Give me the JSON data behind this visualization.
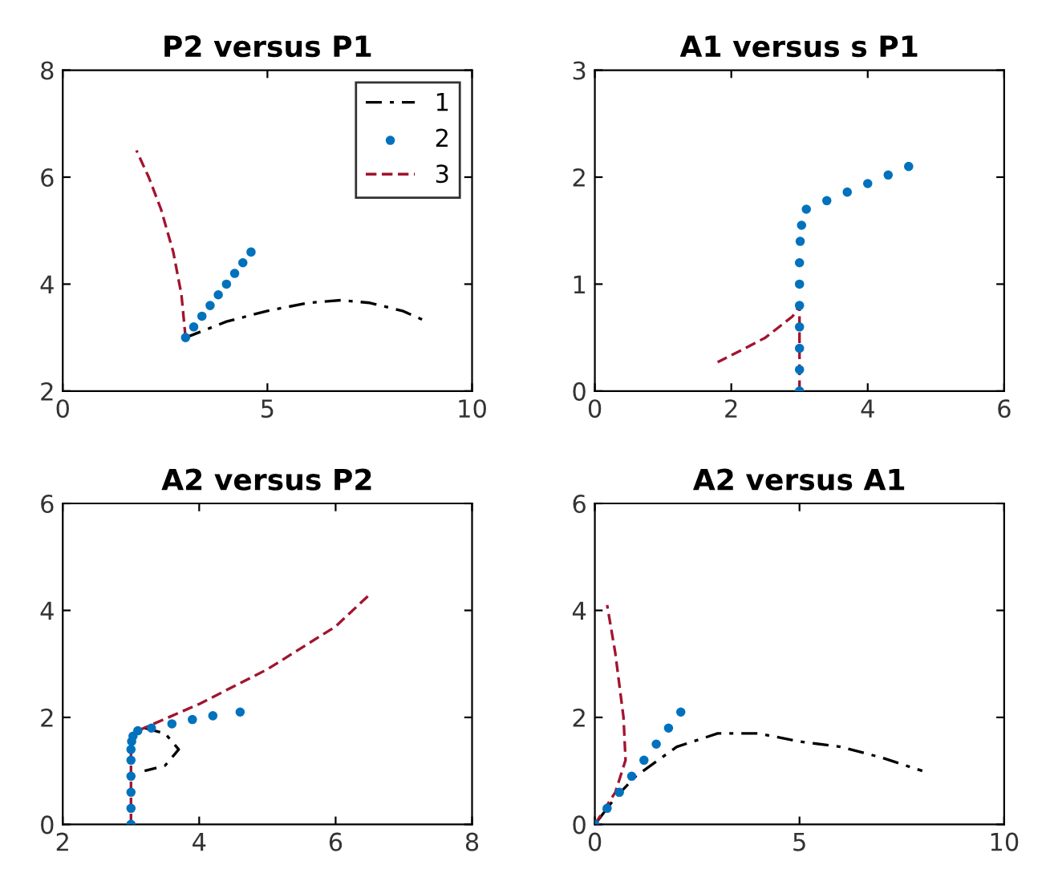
{
  "chart_data": [
    {
      "type": "line",
      "title": "P2 versus P1",
      "xlim": [
        0,
        10
      ],
      "ylim": [
        2,
        8
      ],
      "xticks": [
        0,
        5,
        10
      ],
      "yticks": [
        2,
        4,
        6,
        8
      ],
      "grid": false,
      "legend": "top right",
      "series": [
        {
          "name": "1",
          "line_style": "dashdot",
          "color": "#000000",
          "x": [
            3,
            3.5,
            4,
            5,
            6,
            6.8,
            7.5,
            8.3,
            8.9
          ],
          "values": [
            3,
            3.15,
            3.3,
            3.5,
            3.65,
            3.7,
            3.65,
            3.5,
            3.3
          ]
        },
        {
          "name": "2",
          "type": "scatter",
          "marker": "circle",
          "color": "#0072bd",
          "x": [
            3,
            3.2,
            3.4,
            3.6,
            3.8,
            4,
            4.2,
            4.4,
            4.6
          ],
          "values": [
            3,
            3.2,
            3.4,
            3.6,
            3.8,
            4,
            4.2,
            4.4,
            4.6
          ]
        },
        {
          "name": "3",
          "line_style": "dashed",
          "color": "#a2142f",
          "x": [
            3,
            2.9,
            2.7,
            2.4,
            2.1,
            1.8
          ],
          "values": [
            3,
            3.8,
            4.6,
            5.4,
            6,
            6.5
          ]
        }
      ]
    },
    {
      "type": "line",
      "title": "A1 versus s P1",
      "xlim": [
        0,
        6
      ],
      "ylim": [
        0,
        3
      ],
      "xticks": [
        0,
        2,
        4,
        6
      ],
      "yticks": [
        0,
        1,
        2,
        3
      ],
      "grid": false,
      "series": [
        {
          "type": "scatter",
          "marker": "circle",
          "color": "#0072bd",
          "x": [
            3,
            3,
            3,
            3,
            3,
            3,
            3,
            3.01,
            3.03,
            3.1,
            3.4,
            3.7,
            4,
            4.3,
            4.6
          ],
          "values": [
            0,
            0.2,
            0.4,
            0.6,
            0.8,
            1,
            1.2,
            1.4,
            1.55,
            1.7,
            1.78,
            1.86,
            1.94,
            2.02,
            2.1
          ]
        },
        {
          "line_style": "dashed",
          "color": "#a2142f",
          "x": [
            3,
            3,
            3,
            2.9,
            2.5,
            2.2,
            1.8
          ],
          "values": [
            0,
            0.4,
            0.8,
            0.7,
            0.5,
            0.4,
            0.27
          ]
        }
      ]
    },
    {
      "type": "line",
      "title": "A2 versus P2",
      "xlim": [
        2,
        8
      ],
      "ylim": [
        0,
        6
      ],
      "xticks": [
        2,
        4,
        6,
        8
      ],
      "yticks": [
        0,
        2,
        4,
        6
      ],
      "grid": false,
      "series": [
        {
          "line_style": "dashdot",
          "color": "#000000",
          "x": [
            3.2,
            3.5,
            3.7,
            3.5,
            3.2
          ],
          "values": [
            1.8,
            1.7,
            1.4,
            1.1,
            1.0
          ]
        },
        {
          "type": "scatter",
          "marker": "circle",
          "color": "#0072bd",
          "x": [
            3,
            3,
            3,
            3,
            3,
            3,
            3.01,
            3.03,
            3.1,
            3.3,
            3.6,
            3.9,
            4.2,
            4.6
          ],
          "values": [
            0,
            0.3,
            0.6,
            0.9,
            1.2,
            1.4,
            1.55,
            1.65,
            1.75,
            1.8,
            1.88,
            1.96,
            2.03,
            2.1
          ]
        },
        {
          "line_style": "dashed",
          "color": "#a2142f",
          "x": [
            3,
            3,
            3.1,
            4,
            5,
            6,
            6.5
          ],
          "values": [
            0,
            1.5,
            1.75,
            2.25,
            2.9,
            3.7,
            4.3
          ]
        }
      ]
    },
    {
      "type": "line",
      "title": "A2 versus A1",
      "xlim": [
        0,
        10
      ],
      "ylim": [
        0,
        6
      ],
      "xticks": [
        0,
        5,
        10
      ],
      "yticks": [
        0,
        2,
        4,
        6
      ],
      "grid": false,
      "series": [
        {
          "line_style": "dashdot",
          "color": "#000000",
          "x": [
            0,
            0.5,
            1,
            2,
            3,
            4,
            5,
            6,
            7,
            8
          ],
          "values": [
            0,
            0.5,
            0.9,
            1.45,
            1.7,
            1.7,
            1.55,
            1.45,
            1.25,
            1.0
          ]
        },
        {
          "type": "scatter",
          "marker": "circle",
          "color": "#0072bd",
          "x": [
            0,
            0.3,
            0.6,
            0.9,
            1.2,
            1.5,
            1.8,
            2.1
          ],
          "values": [
            0,
            0.3,
            0.6,
            0.9,
            1.2,
            1.5,
            1.8,
            2.1
          ]
        },
        {
          "line_style": "dashed",
          "color": "#a2142f",
          "x": [
            0,
            0.5,
            0.75,
            0.7,
            0.6,
            0.5,
            0.3
          ],
          "values": [
            0,
            0.6,
            1.2,
            2,
            2.6,
            3.2,
            4.1
          ]
        }
      ]
    }
  ]
}
